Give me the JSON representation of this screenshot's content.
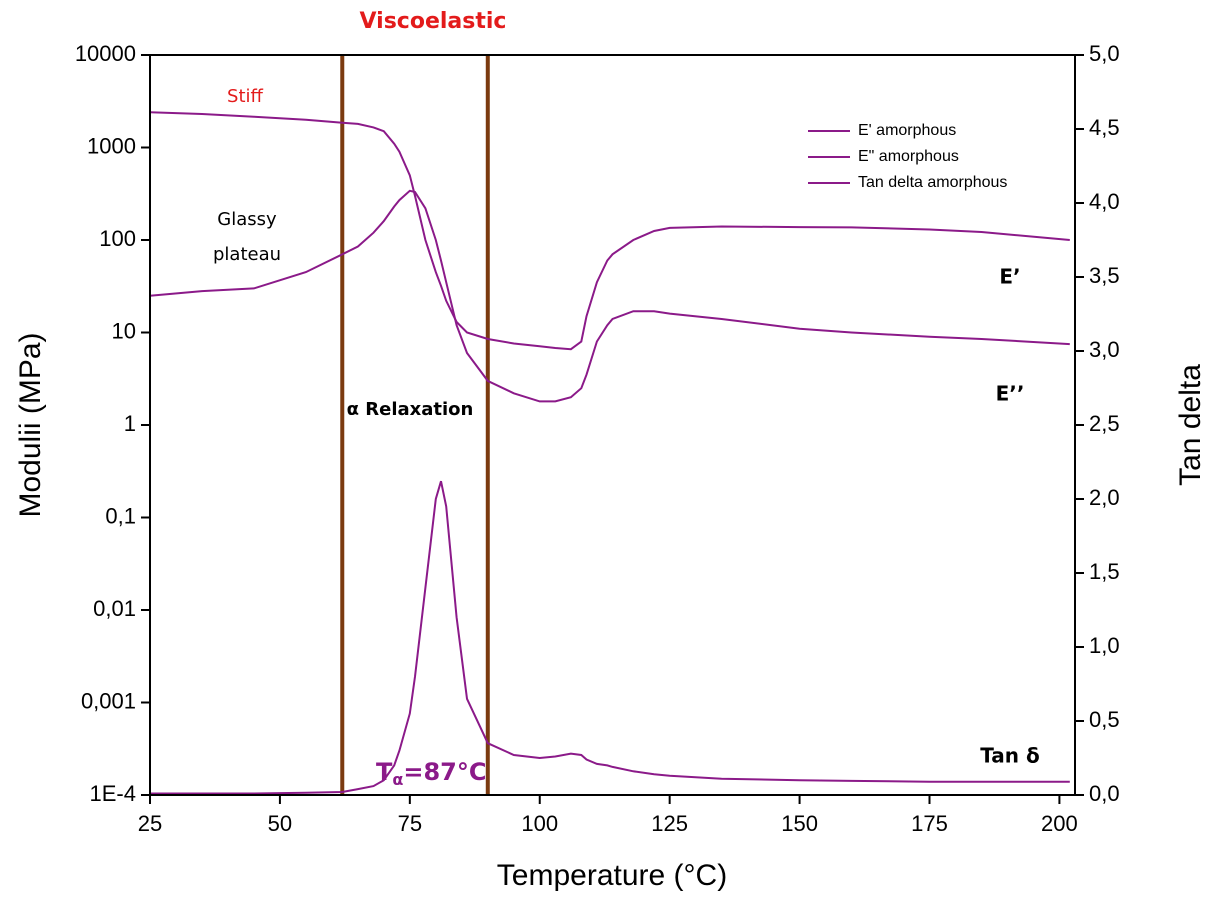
{
  "chart_data": {
    "type": "line",
    "xlabel": "Temperature (°C)",
    "ylabel": "Modulii (MPa)",
    "y2label": "Tan delta",
    "xlim": [
      25,
      203
    ],
    "xticks": [
      25,
      50,
      75,
      100,
      125,
      150,
      175,
      200
    ],
    "ylim": [
      0.0001,
      10000
    ],
    "yscale": "log",
    "yticks": [
      {
        "value": 0.0001,
        "label": "1E-4"
      },
      {
        "value": 0.001,
        "label": "0,001"
      },
      {
        "value": 0.01,
        "label": "0,01"
      },
      {
        "value": 0.1,
        "label": "0,1"
      },
      1,
      10,
      100,
      1000,
      10000
    ],
    "y2lim": [
      0,
      5
    ],
    "y2ticks": [
      {
        "value": 0,
        "label": "0,0"
      },
      {
        "value": 0.5,
        "label": "0,5"
      },
      {
        "value": 1,
        "label": "1,0"
      },
      {
        "value": 1.5,
        "label": "1,5"
      },
      {
        "value": 2,
        "label": "2,0"
      },
      {
        "value": 2.5,
        "label": "2,5"
      },
      {
        "value": 3,
        "label": "3,0"
      },
      {
        "value": 3.5,
        "label": "3,5"
      },
      {
        "value": 4,
        "label": "4,0"
      },
      {
        "value": 4.5,
        "label": "4,5"
      },
      {
        "value": 5,
        "label": "5,0"
      }
    ],
    "legend": "upper right",
    "x": [
      25,
      35,
      45,
      55,
      62,
      65,
      68,
      70,
      72,
      73,
      75,
      76,
      78,
      80,
      81,
      82,
      84,
      86,
      90,
      95,
      100,
      103,
      106,
      108,
      109,
      111,
      113,
      114,
      118,
      122,
      125,
      135,
      150,
      160,
      175,
      185,
      202
    ],
    "series": [
      {
        "name": "E' amorphous",
        "color": "#8b1a89",
        "values": [
          2400,
          2300,
          2150,
          2000,
          1850,
          1800,
          1650,
          1500,
          1100,
          900,
          500,
          300,
          100,
          45,
          32,
          22,
          13,
          10,
          8.5,
          7.6,
          7.1,
          6.8,
          6.6,
          8,
          15,
          35,
          60,
          70,
          100,
          125,
          135,
          140,
          138,
          137,
          130,
          122,
          100
        ]
      },
      {
        "name": "E\" amorphous",
        "color": "#8b1a89",
        "values": [
          25,
          28,
          30,
          45,
          70,
          85,
          120,
          160,
          230,
          270,
          340,
          330,
          220,
          100,
          60,
          35,
          12,
          6,
          3,
          2.2,
          1.8,
          1.8,
          2,
          2.5,
          3.5,
          8,
          12,
          14,
          17,
          17,
          16,
          14,
          11,
          10,
          9,
          8.5,
          7.5
        ]
      },
      {
        "name": "Tan delta amorphous",
        "color": "#8b1a89",
        "axis": "y2",
        "values": [
          0.01,
          0.01,
          0.01,
          0.015,
          0.02,
          0.04,
          0.06,
          0.1,
          0.2,
          0.3,
          0.55,
          0.8,
          1.4,
          2.0,
          2.12,
          1.95,
          1.2,
          0.65,
          0.35,
          0.27,
          0.25,
          0.26,
          0.28,
          0.27,
          0.24,
          0.21,
          0.2,
          0.19,
          0.16,
          0.14,
          0.13,
          0.11,
          0.1,
          0.095,
          0.09,
          0.09,
          0.09
        ]
      }
    ],
    "vlines": {
      "color": "#7b3a10",
      "x": [
        62,
        90
      ]
    },
    "annotations": [
      {
        "text": "Viscoelastic",
        "color": "#e31b1b"
      },
      {
        "text": "Stiff",
        "color": "#e31b1b"
      },
      {
        "text": "Glassy",
        "color": "#000000"
      },
      {
        "text": "plateau",
        "color": "#000000"
      },
      {
        "text": "α Relaxation",
        "color": "#000000"
      },
      {
        "text": "E’",
        "color": "#000000"
      },
      {
        "text": "E’’",
        "color": "#000000"
      },
      {
        "text": "Tan δ",
        "color": "#000000"
      }
    ],
    "tg_label": {
      "main": "T",
      "sub": "α",
      "rest": "=87°C",
      "color": "#8b1a89"
    }
  }
}
